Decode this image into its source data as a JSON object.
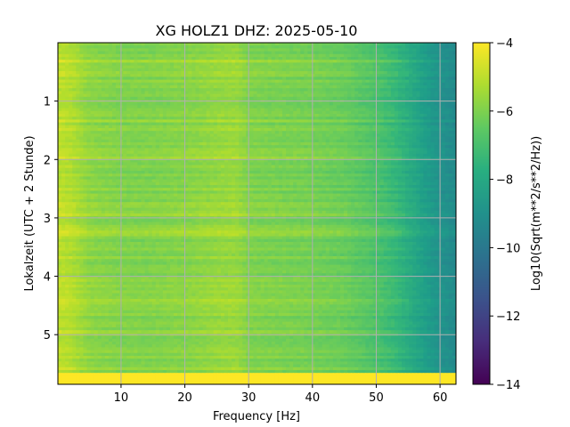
{
  "chart_data": {
    "type": "heatmap",
    "title": "XG HOLZ1  DHZ: 2025-05-10",
    "xlabel": "Frequency [Hz]",
    "ylabel": "Lokalzeit (UTC + 2 Stunde)",
    "xlim": [
      0.1,
      62.5
    ],
    "ylim": [
      5.85,
      0
    ],
    "y_inverted": true,
    "x_ticks": [
      10,
      20,
      30,
      40,
      50,
      60
    ],
    "x_tick_labels": [
      "10",
      "20",
      "30",
      "40",
      "50",
      "60"
    ],
    "y_ticks": [
      1,
      2,
      3,
      4,
      5
    ],
    "y_tick_labels": [
      "1",
      "2",
      "3",
      "4",
      "5"
    ],
    "grid": true,
    "colormap": "viridis",
    "colorbar": {
      "label": "Log10(Sqrt(m**2/s**2/Hz))",
      "range": [
        -14,
        -4
      ],
      "ticks": [
        -4,
        -6,
        -8,
        -10,
        -12,
        -14
      ],
      "tick_labels": [
        "−4",
        "−6",
        "−8",
        "−10",
        "−12",
        "−14"
      ]
    },
    "spectrum_profile": {
      "frequency_hz": [
        0.5,
        2,
        5,
        10,
        15,
        20,
        25,
        28,
        30,
        35,
        40,
        45,
        50,
        53,
        55,
        58,
        60,
        62.5
      ],
      "log10_amplitude": [
        -5.0,
        -5.1,
        -5.7,
        -5.9,
        -5.9,
        -5.8,
        -5.6,
        -5.5,
        -5.9,
        -6.0,
        -6.1,
        -6.3,
        -6.8,
        -7.3,
        -7.8,
        -8.5,
        -8.9,
        -9.2
      ]
    },
    "saturated_time_range": [
      5.65,
      5.85
    ],
    "saturated_value": -4
  }
}
